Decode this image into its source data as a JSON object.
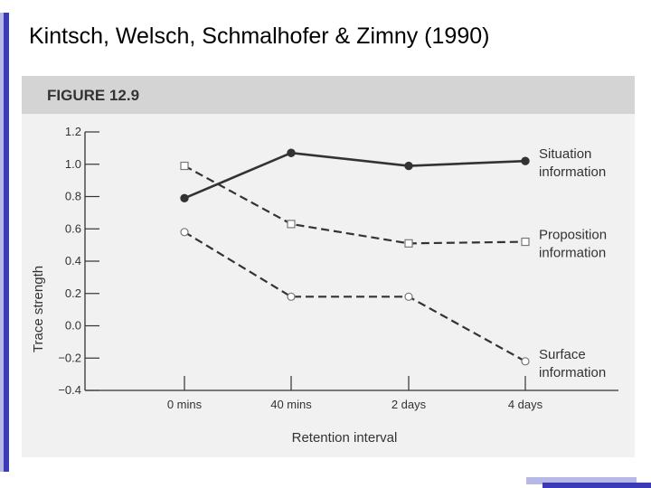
{
  "slide": {
    "title": "Kintsch, Welsch, Schmalhofer & Zimny (1990)"
  },
  "colors": {
    "accent_dark": "#3b3bb5",
    "accent_light": "#b8b8e6",
    "figure_bg": "#f1f1f1",
    "heading_band": "#d4d4d4",
    "ink": "#333333"
  },
  "chart_data": {
    "type": "line",
    "figure_label": "FIGURE 12.9",
    "title": "",
    "xlabel": "Retention interval",
    "ylabel": "Trace strength",
    "categories": [
      "0 mins",
      "40 mins",
      "2 days",
      "4 days"
    ],
    "ylim": [
      -0.4,
      1.2
    ],
    "yticks": [
      "1.2",
      "1.0",
      "0.8",
      "0.6",
      "0.4",
      "0.2",
      "0.0",
      "−0.2",
      "−0.4"
    ],
    "ytick_values": [
      1.2,
      1.0,
      0.8,
      0.6,
      0.4,
      0.2,
      0.0,
      -0.2,
      -0.4
    ],
    "grid": false,
    "legend": "labels at right end of each line",
    "series": [
      {
        "name": "Situation information",
        "label_lines": [
          "Situation",
          "information"
        ],
        "values": [
          0.79,
          1.07,
          0.99,
          1.02
        ],
        "line": "solid",
        "marker": "filled-circle"
      },
      {
        "name": "Proposition information",
        "label_lines": [
          "Proposition",
          "information"
        ],
        "values": [
          0.99,
          0.63,
          0.51,
          0.52
        ],
        "line": "dashed",
        "marker": "open-square"
      },
      {
        "name": "Surface information",
        "label_lines": [
          "Surface",
          "information"
        ],
        "values": [
          0.58,
          0.18,
          0.18,
          -0.22
        ],
        "line": "dashed",
        "marker": "open-circle"
      }
    ]
  }
}
